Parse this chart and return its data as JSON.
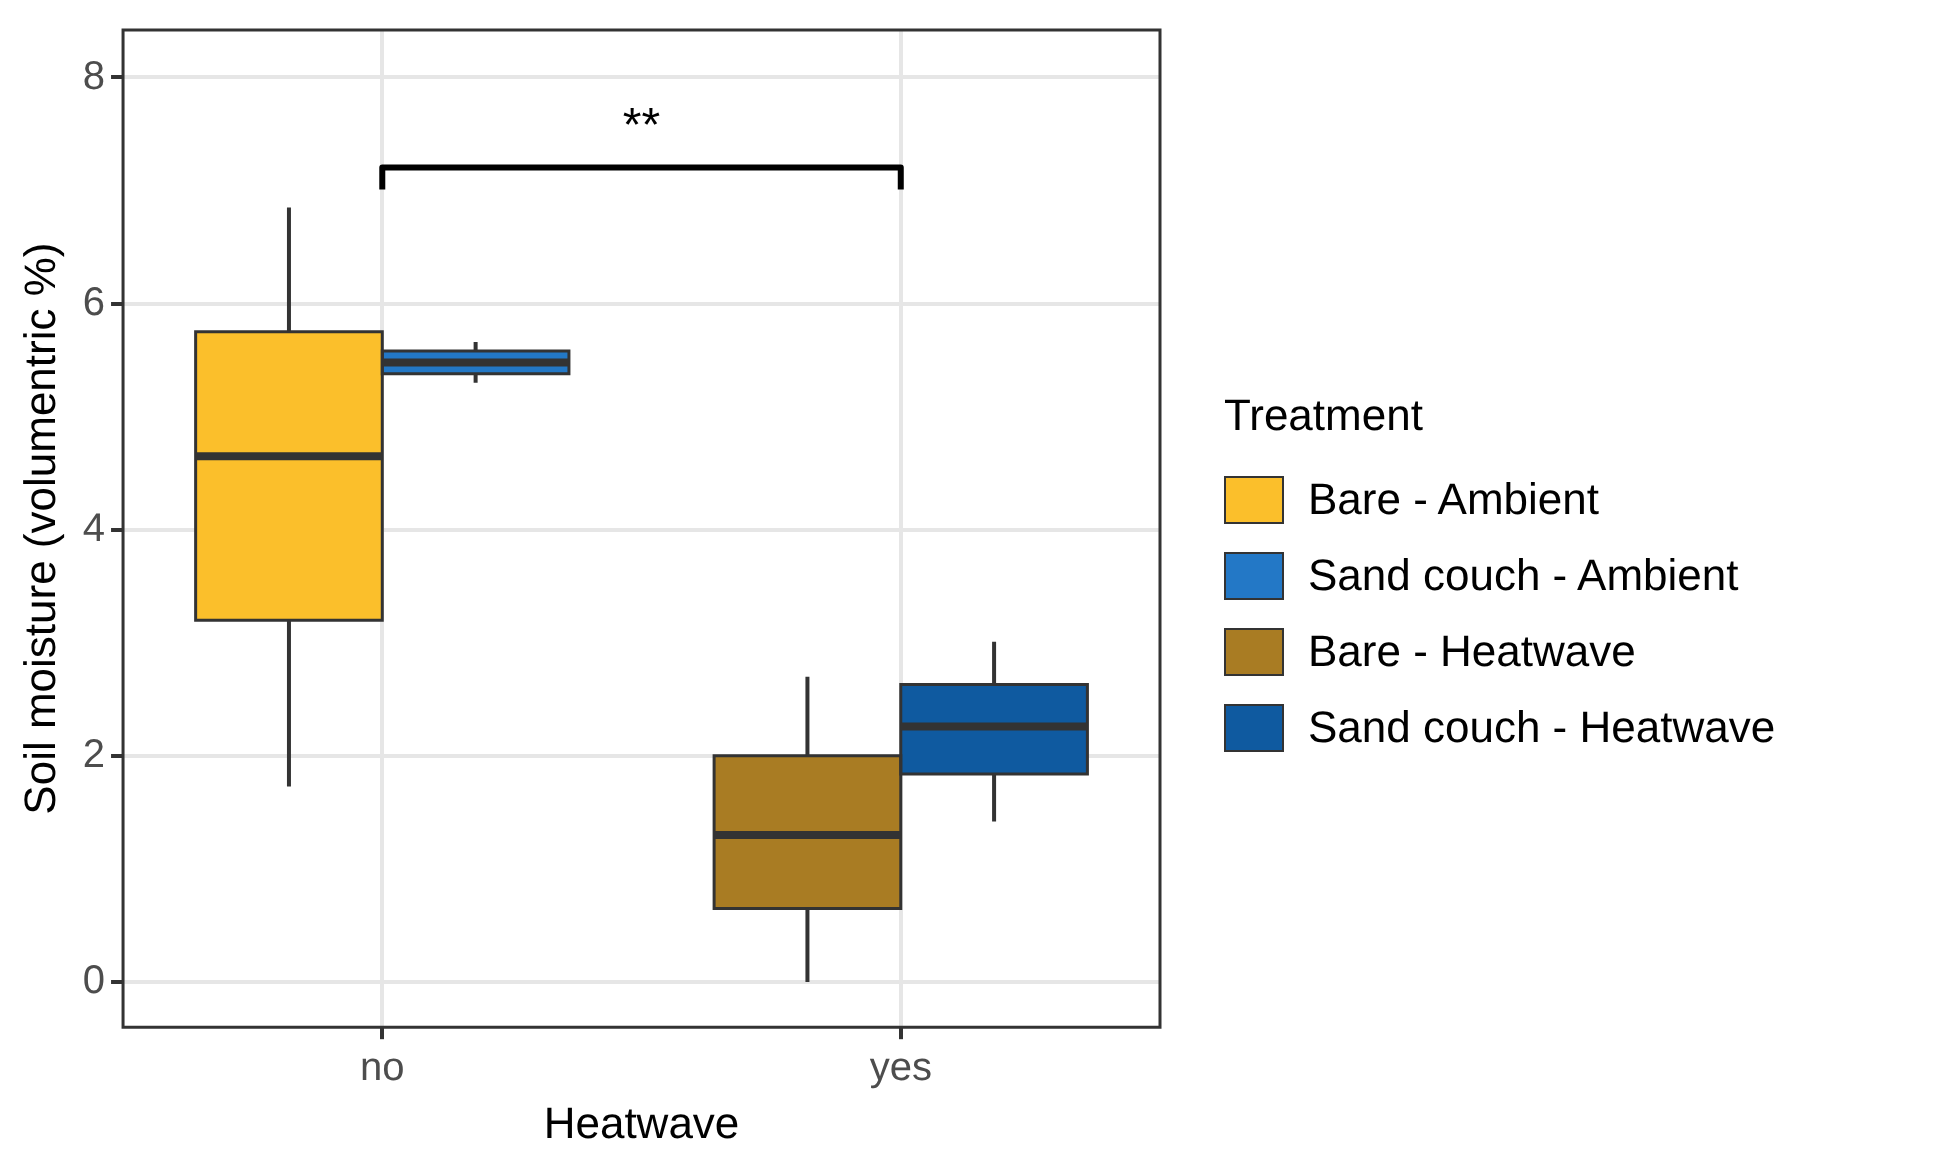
{
  "chart_data": {
    "type": "box",
    "xlabel": "Heatwave",
    "ylabel": "Soil moisture (volumentric %)",
    "legend_title": "Treatment",
    "categories": [
      "no",
      "yes"
    ],
    "series": [
      {
        "name": "Bare - Ambient",
        "color": "#fbbf2b",
        "boxes": [
          {
            "low": 1.73,
            "q1": 3.2,
            "median": 4.65,
            "q3": 5.75,
            "high": 6.85
          },
          null
        ]
      },
      {
        "name": "Sand couch - Ambient",
        "color": "#2378c6",
        "boxes": [
          {
            "low": 5.3,
            "q1": 5.38,
            "median": 5.48,
            "q3": 5.58,
            "high": 5.66
          },
          null
        ]
      },
      {
        "name": "Bare - Heatwave",
        "color": "#a97c23",
        "boxes": [
          null,
          {
            "low": 0.0,
            "q1": 0.65,
            "median": 1.3,
            "q3": 2.0,
            "high": 2.7
          }
        ]
      },
      {
        "name": "Sand couch - Heatwave",
        "color": "#0f5aa0",
        "boxes": [
          null,
          {
            "low": 1.42,
            "q1": 1.84,
            "median": 2.26,
            "q3": 2.63,
            "high": 3.01
          }
        ]
      }
    ],
    "ylim": [
      -0.4,
      8.42
    ],
    "yticks": [
      0,
      2,
      4,
      6,
      8
    ],
    "grid": true,
    "legend": "right",
    "annotations": [
      "**"
    ]
  }
}
